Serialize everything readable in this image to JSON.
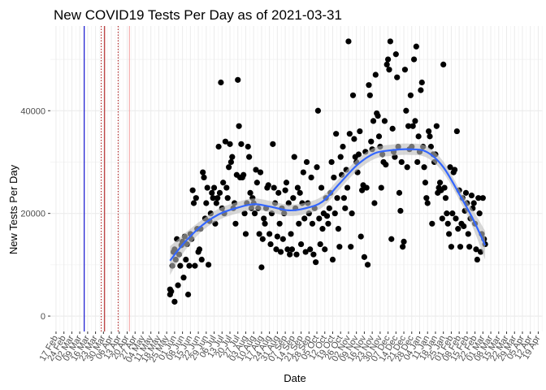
{
  "chart_data": {
    "type": "scatter",
    "title": "New COVID19 Tests Per Day as of 2021-03-31",
    "xlabel": "Date",
    "ylabel": "New Tests Per Day",
    "ylim": [
      -3000,
      56500
    ],
    "y_ticks": [
      0,
      20000,
      40000
    ],
    "y_tick_labels": [
      "0",
      "20000",
      "40000"
    ],
    "x_range": [
      "2020-02-12",
      "2021-04-23"
    ],
    "x_tick_step_days": 7,
    "x_tick_labels": [
      "17 Feb",
      "24 Feb",
      "02 Mar",
      "09 Mar",
      "16 Mar",
      "23 Mar",
      "30 Mar",
      "06 Apr",
      "13 Apr",
      "20 Apr",
      "27 Apr",
      "04 May",
      "11 May",
      "18 May",
      "25 May",
      "01 Jun",
      "08 Jun",
      "15 Jun",
      "22 Jun",
      "29 Jun",
      "06 Jul",
      "13 Jul",
      "20 Jul",
      "27 Jul",
      "03 Aug",
      "10 Aug",
      "17 Aug",
      "24 Aug",
      "31 Aug",
      "07 Sep",
      "14 Sep",
      "21 Sep",
      "28 Sep",
      "05 Oct",
      "12 Oct",
      "19 Oct",
      "26 Oct",
      "02 Nov",
      "09 Nov",
      "16 Nov",
      "23 Nov",
      "30 Nov",
      "07 Dec",
      "14 Dec",
      "21 Dec",
      "28 Dec",
      "04 Jan",
      "11 Jan",
      "18 Jan",
      "25 Jan",
      "01 Feb",
      "08 Feb",
      "15 Feb",
      "22 Feb",
      "01 Mar",
      "08 Mar",
      "15 Mar",
      "22 Mar",
      "29 Mar",
      "05 Apr",
      "12 Apr",
      "19 Apr"
    ],
    "vertical_lines": [
      {
        "date": "2020-03-13",
        "color": "#0000cd",
        "style": "solid"
      },
      {
        "date": "2020-03-28",
        "color": "#b22222",
        "style": "dotted"
      },
      {
        "date": "2020-03-31",
        "color": "#b22222",
        "style": "solid"
      },
      {
        "date": "2020-04-12",
        "color": "#b22222",
        "style": "dotted"
      },
      {
        "date": "2020-04-22",
        "color": "#f4a6a6",
        "style": "solid"
      }
    ],
    "grid": true,
    "colors": {
      "points": "#000000",
      "smooth": "#3366ff",
      "ribbon": "#bdbdbd"
    },
    "points": [
      [
        "2020-05-28",
        4200
      ],
      [
        "2020-05-28",
        5200
      ],
      [
        "2020-05-29",
        4800
      ],
      [
        "2020-05-30",
        9800
      ],
      [
        "2020-05-31",
        12500
      ],
      [
        "2020-06-01",
        13000
      ],
      [
        "2020-06-01",
        2800
      ],
      [
        "2020-06-02",
        11000
      ],
      [
        "2020-06-03",
        15000
      ],
      [
        "2020-06-04",
        6000
      ],
      [
        "2020-06-05",
        12000
      ],
      [
        "2020-06-06",
        9800
      ],
      [
        "2020-06-07",
        13800
      ],
      [
        "2020-06-08",
        14500
      ],
      [
        "2020-06-09",
        7500
      ],
      [
        "2020-06-10",
        15500
      ],
      [
        "2020-06-11",
        11000
      ],
      [
        "2020-06-12",
        14000
      ],
      [
        "2020-06-13",
        4200
      ],
      [
        "2020-06-14",
        9800
      ],
      [
        "2020-06-15",
        16000
      ],
      [
        "2020-06-16",
        15000
      ],
      [
        "2020-06-17",
        24500
      ],
      [
        "2020-06-18",
        22000
      ],
      [
        "2020-06-19",
        9800
      ],
      [
        "2020-06-20",
        23000
      ],
      [
        "2020-06-21",
        17000
      ],
      [
        "2020-06-22",
        12500
      ],
      [
        "2020-06-23",
        13000
      ],
      [
        "2020-06-24",
        17000
      ],
      [
        "2020-06-25",
        11000
      ],
      [
        "2020-06-26",
        28000
      ],
      [
        "2020-06-27",
        27000
      ],
      [
        "2020-06-28",
        19000
      ],
      [
        "2020-06-29",
        22000
      ],
      [
        "2020-06-30",
        25000
      ],
      [
        "2020-07-01",
        10000
      ],
      [
        "2020-07-02",
        18500
      ],
      [
        "2020-07-03",
        20000
      ],
      [
        "2020-07-04",
        24000
      ],
      [
        "2020-07-05",
        23000
      ],
      [
        "2020-07-06",
        25000
      ],
      [
        "2020-07-07",
        18000
      ],
      [
        "2020-07-08",
        22000
      ],
      [
        "2020-07-09",
        23000
      ],
      [
        "2020-07-10",
        33000
      ],
      [
        "2020-07-11",
        24000
      ],
      [
        "2020-07-12",
        45500
      ],
      [
        "2020-07-13",
        21000
      ],
      [
        "2020-07-14",
        26000
      ],
      [
        "2020-07-15",
        20000
      ],
      [
        "2020-07-16",
        34000
      ],
      [
        "2020-07-17",
        25000
      ],
      [
        "2020-07-18",
        23000
      ],
      [
        "2020-07-19",
        29000
      ],
      [
        "2020-07-20",
        33500
      ],
      [
        "2020-07-21",
        30000
      ],
      [
        "2020-07-22",
        31000
      ],
      [
        "2020-07-23",
        21000
      ],
      [
        "2020-07-24",
        22000
      ],
      [
        "2020-07-25",
        18000
      ],
      [
        "2020-07-26",
        27500
      ],
      [
        "2020-07-27",
        46000
      ],
      [
        "2020-07-28",
        37000
      ],
      [
        "2020-07-29",
        27000
      ],
      [
        "2020-07-30",
        33500
      ],
      [
        "2020-07-31",
        27000
      ],
      [
        "2020-08-01",
        27500
      ],
      [
        "2020-08-02",
        20000
      ],
      [
        "2020-08-03",
        16000
      ],
      [
        "2020-08-04",
        22000
      ],
      [
        "2020-08-05",
        33000
      ],
      [
        "2020-08-06",
        31000
      ],
      [
        "2020-08-07",
        24000
      ],
      [
        "2020-08-08",
        21000
      ],
      [
        "2020-08-09",
        23000
      ],
      [
        "2020-08-10",
        22000
      ],
      [
        "2020-08-11",
        20000
      ],
      [
        "2020-08-12",
        28500
      ],
      [
        "2020-08-13",
        26000
      ],
      [
        "2020-08-14",
        21000
      ],
      [
        "2020-08-15",
        16000
      ],
      [
        "2020-08-16",
        28000
      ],
      [
        "2020-08-17",
        9500
      ],
      [
        "2020-08-18",
        15000
      ],
      [
        "2020-08-19",
        19000
      ],
      [
        "2020-08-20",
        18000
      ],
      [
        "2020-08-21",
        21000
      ],
      [
        "2020-08-22",
        25000
      ],
      [
        "2020-08-23",
        25500
      ],
      [
        "2020-08-24",
        16000
      ],
      [
        "2020-08-25",
        14000
      ],
      [
        "2020-08-26",
        20000
      ],
      [
        "2020-08-27",
        33500
      ],
      [
        "2020-08-28",
        25000
      ],
      [
        "2020-08-29",
        22000
      ],
      [
        "2020-08-30",
        13000
      ],
      [
        "2020-08-31",
        15500
      ],
      [
        "2020-09-01",
        24000
      ],
      [
        "2020-09-02",
        18000
      ],
      [
        "2020-09-03",
        12500
      ],
      [
        "2020-09-04",
        21000
      ],
      [
        "2020-09-05",
        15000
      ],
      [
        "2020-09-06",
        20000
      ],
      [
        "2020-09-07",
        24500
      ],
      [
        "2020-09-08",
        26000
      ],
      [
        "2020-09-09",
        13000
      ],
      [
        "2020-09-10",
        22000
      ],
      [
        "2020-09-11",
        12000
      ],
      [
        "2020-09-12",
        16000
      ],
      [
        "2020-09-13",
        13000
      ],
      [
        "2020-09-14",
        23000
      ],
      [
        "2020-09-15",
        31000
      ],
      [
        "2020-09-16",
        21000
      ],
      [
        "2020-09-17",
        12000
      ],
      [
        "2020-09-18",
        25000
      ],
      [
        "2020-09-19",
        18000
      ],
      [
        "2020-09-20",
        24000
      ],
      [
        "2020-09-21",
        14000
      ],
      [
        "2020-09-22",
        22000
      ],
      [
        "2020-09-23",
        28000
      ],
      [
        "2020-09-24",
        19000
      ],
      [
        "2020-09-25",
        12500
      ],
      [
        "2020-09-26",
        30000
      ],
      [
        "2020-09-27",
        22000
      ],
      [
        "2020-09-28",
        20000
      ],
      [
        "2020-09-29",
        13000
      ],
      [
        "2020-09-30",
        27000
      ],
      [
        "2020-10-01",
        18000
      ],
      [
        "2020-10-02",
        12000
      ],
      [
        "2020-10-03",
        21000
      ],
      [
        "2020-10-04",
        10500
      ],
      [
        "2020-10-05",
        29000
      ],
      [
        "2020-10-06",
        40000
      ],
      [
        "2020-10-07",
        19000
      ],
      [
        "2020-10-08",
        14000
      ],
      [
        "2020-10-09",
        25000
      ],
      [
        "2020-10-10",
        17000
      ],
      [
        "2020-10-11",
        20000
      ],
      [
        "2020-10-12",
        13000
      ],
      [
        "2020-10-13",
        23000
      ],
      [
        "2020-10-14",
        19500
      ],
      [
        "2020-10-15",
        18000
      ],
      [
        "2020-10-16",
        21000
      ],
      [
        "2020-10-17",
        24000
      ],
      [
        "2020-10-18",
        30000
      ],
      [
        "2020-10-19",
        11000
      ],
      [
        "2020-10-20",
        27000
      ],
      [
        "2020-10-21",
        20000
      ],
      [
        "2020-10-22",
        35500
      ],
      [
        "2020-10-23",
        23000
      ],
      [
        "2020-10-24",
        17000
      ],
      [
        "2020-10-25",
        13500
      ],
      [
        "2020-10-26",
        31000
      ],
      [
        "2020-10-27",
        27500
      ],
      [
        "2020-10-28",
        33000
      ],
      [
        "2020-10-29",
        23000
      ],
      [
        "2020-10-30",
        21000
      ],
      [
        "2020-10-31",
        28500
      ],
      [
        "2020-11-01",
        25000
      ],
      [
        "2020-11-02",
        53500
      ],
      [
        "2020-11-03",
        35500
      ],
      [
        "2020-11-04",
        13500
      ],
      [
        "2020-11-05",
        20000
      ],
      [
        "2020-11-06",
        43000
      ],
      [
        "2020-11-07",
        34500
      ],
      [
        "2020-11-08",
        31000
      ],
      [
        "2020-11-09",
        30000
      ],
      [
        "2020-11-10",
        28000
      ],
      [
        "2020-11-11",
        31500
      ],
      [
        "2020-11-12",
        36000
      ],
      [
        "2020-11-13",
        15500
      ],
      [
        "2020-11-14",
        24500
      ],
      [
        "2020-11-15",
        25500
      ],
      [
        "2020-11-16",
        11500
      ],
      [
        "2020-11-17",
        32000
      ],
      [
        "2020-11-18",
        25000
      ],
      [
        "2020-11-19",
        10000
      ],
      [
        "2020-11-20",
        45000
      ],
      [
        "2020-11-21",
        43000
      ],
      [
        "2020-11-22",
        34000
      ],
      [
        "2020-11-23",
        32500
      ],
      [
        "2020-11-24",
        38000
      ],
      [
        "2020-11-25",
        22000
      ],
      [
        "2020-11-26",
        47000
      ],
      [
        "2020-11-27",
        39500
      ],
      [
        "2020-11-28",
        39000
      ],
      [
        "2020-11-29",
        35000
      ],
      [
        "2020-11-30",
        33000
      ],
      [
        "2020-12-01",
        25000
      ],
      [
        "2020-12-02",
        31500
      ],
      [
        "2020-12-03",
        30000
      ],
      [
        "2020-12-04",
        38000
      ],
      [
        "2020-12-05",
        29500
      ],
      [
        "2020-12-06",
        49000
      ],
      [
        "2020-12-07",
        50000
      ],
      [
        "2020-12-08",
        48000
      ],
      [
        "2020-12-09",
        53500
      ],
      [
        "2020-12-10",
        15000
      ],
      [
        "2020-12-11",
        36500
      ],
      [
        "2020-12-12",
        32000
      ],
      [
        "2020-12-13",
        31000
      ],
      [
        "2020-12-14",
        51000
      ],
      [
        "2020-12-15",
        46500
      ],
      [
        "2020-12-16",
        33000
      ],
      [
        "2020-12-17",
        24000
      ],
      [
        "2020-12-18",
        20500
      ],
      [
        "2020-12-19",
        30000
      ],
      [
        "2020-12-20",
        13500
      ],
      [
        "2020-12-21",
        14500
      ],
      [
        "2020-12-22",
        48000
      ],
      [
        "2020-12-23",
        40000
      ],
      [
        "2020-12-24",
        29000
      ],
      [
        "2020-12-25",
        37000
      ],
      [
        "2020-12-26",
        32500
      ],
      [
        "2020-12-27",
        43000
      ],
      [
        "2020-12-28",
        33000
      ],
      [
        "2020-12-29",
        37000
      ],
      [
        "2020-12-30",
        50000
      ],
      [
        "2020-12-31",
        38000
      ],
      [
        "2021-01-01",
        52500
      ],
      [
        "2021-01-02",
        30000
      ],
      [
        "2021-01-03",
        35000
      ],
      [
        "2021-01-04",
        32000
      ],
      [
        "2021-01-05",
        44000
      ],
      [
        "2021-01-06",
        45500
      ],
      [
        "2021-01-07",
        33000
      ],
      [
        "2021-01-08",
        29000
      ],
      [
        "2021-01-09",
        26000
      ],
      [
        "2021-01-10",
        23000
      ],
      [
        "2021-01-11",
        22000
      ],
      [
        "2021-01-12",
        36000
      ],
      [
        "2021-01-13",
        35000
      ],
      [
        "2021-01-14",
        33000
      ],
      [
        "2021-01-15",
        18000
      ],
      [
        "2021-01-16",
        31500
      ],
      [
        "2021-01-17",
        30000
      ],
      [
        "2021-01-18",
        31500
      ],
      [
        "2021-01-19",
        37000
      ],
      [
        "2021-01-20",
        24000
      ],
      [
        "2021-01-21",
        25000
      ],
      [
        "2021-01-22",
        26000
      ],
      [
        "2021-01-23",
        24500
      ],
      [
        "2021-01-24",
        19000
      ],
      [
        "2021-01-25",
        49000
      ],
      [
        "2021-01-26",
        25000
      ],
      [
        "2021-01-27",
        23000
      ],
      [
        "2021-01-28",
        20000
      ],
      [
        "2021-01-29",
        18000
      ],
      [
        "2021-01-30",
        16000
      ],
      [
        "2021-01-31",
        29000
      ],
      [
        "2021-02-01",
        13500
      ],
      [
        "2021-02-02",
        20000
      ],
      [
        "2021-02-03",
        28000
      ],
      [
        "2021-02-04",
        28500
      ],
      [
        "2021-02-05",
        19000
      ],
      [
        "2021-02-06",
        36000
      ],
      [
        "2021-02-07",
        17000
      ],
      [
        "2021-02-08",
        24500
      ],
      [
        "2021-02-09",
        13500
      ],
      [
        "2021-02-10",
        18000
      ],
      [
        "2021-02-11",
        23000
      ],
      [
        "2021-02-12",
        17500
      ],
      [
        "2021-02-13",
        20500
      ],
      [
        "2021-02-14",
        24000
      ],
      [
        "2021-02-15",
        22000
      ],
      [
        "2021-02-16",
        16000
      ],
      [
        "2021-02-17",
        13500
      ],
      [
        "2021-02-18",
        19000
      ],
      [
        "2021-02-19",
        23500
      ],
      [
        "2021-02-20",
        21000
      ],
      [
        "2021-02-21",
        22000
      ],
      [
        "2021-02-22",
        18000
      ],
      [
        "2021-02-23",
        13000
      ],
      [
        "2021-02-24",
        11000
      ],
      [
        "2021-02-25",
        23000
      ],
      [
        "2021-02-26",
        20000
      ],
      [
        "2021-02-27",
        12500
      ],
      [
        "2021-02-28",
        16000
      ],
      [
        "2021-03-01",
        23000
      ],
      [
        "2021-03-02",
        15000
      ],
      [
        "2021-03-03",
        14000
      ]
    ],
    "smooth_line": [
      [
        "2020-05-28",
        10800
      ],
      [
        "2020-06-10",
        14400
      ],
      [
        "2020-06-25",
        17600
      ],
      [
        "2020-07-10",
        19800
      ],
      [
        "2020-07-25",
        21000
      ],
      [
        "2020-08-10",
        21800
      ],
      [
        "2020-08-25",
        21300
      ],
      [
        "2020-09-10",
        20600
      ],
      [
        "2020-09-25",
        21000
      ],
      [
        "2020-10-10",
        22300
      ],
      [
        "2020-10-25",
        25800
      ],
      [
        "2020-11-10",
        29500
      ],
      [
        "2020-11-25",
        31700
      ],
      [
        "2020-12-10",
        32300
      ],
      [
        "2020-12-25",
        32500
      ],
      [
        "2021-01-10",
        32000
      ],
      [
        "2021-01-25",
        29000
      ],
      [
        "2021-02-10",
        23000
      ],
      [
        "2021-02-20",
        19000
      ],
      [
        "2021-03-03",
        13800
      ]
    ]
  }
}
